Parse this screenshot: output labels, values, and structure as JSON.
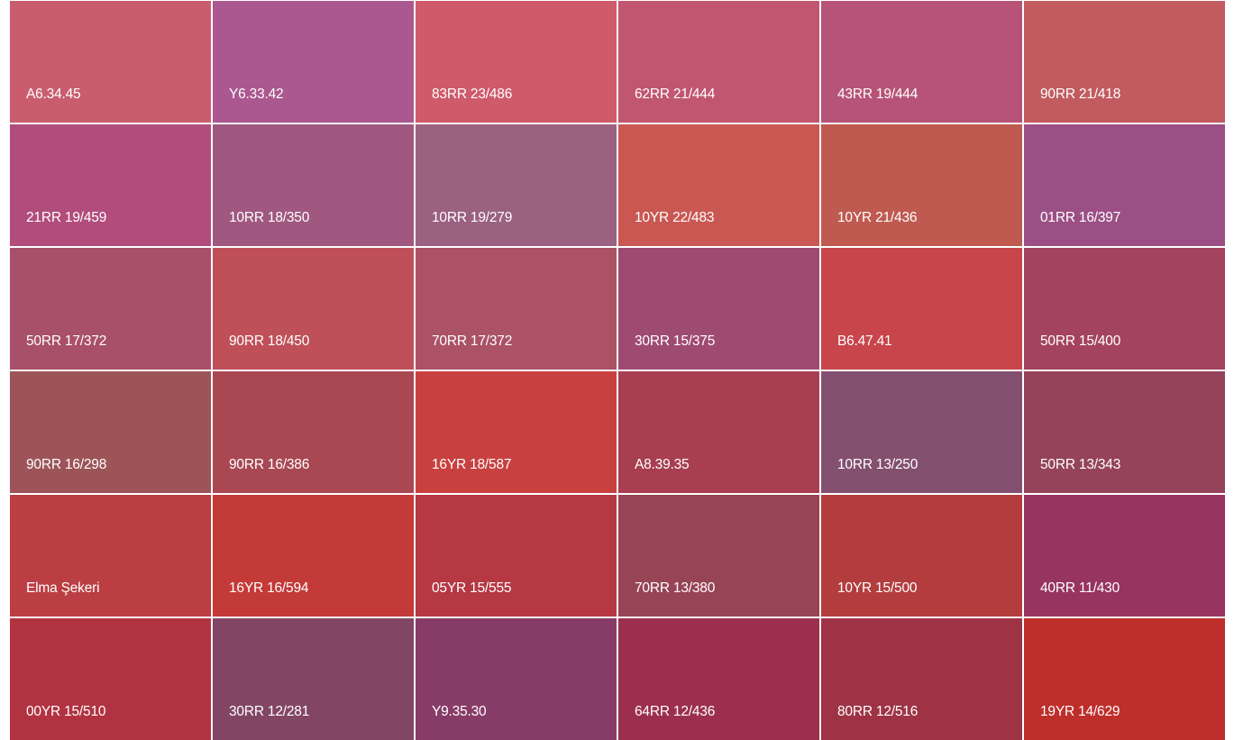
{
  "swatches": [
    {
      "code": "A6.34.45",
      "color": "#c95d6e"
    },
    {
      "code": "Y6.33.42",
      "color": "#ab5790"
    },
    {
      "code": "83RR 23/486",
      "color": "#cf5a6a"
    },
    {
      "code": "62RR 21/444",
      "color": "#c0566f"
    },
    {
      "code": "43RR 19/444",
      "color": "#b65377"
    },
    {
      "code": "90RR 21/418",
      "color": "#c15b60"
    },
    {
      "code": "21RR 19/459",
      "color": "#b14c7c"
    },
    {
      "code": "10RR 18/350",
      "color": "#a05880"
    },
    {
      "code": "10RR 19/279",
      "color": "#9a6181"
    },
    {
      "code": "10YR 22/483",
      "color": "#c95853"
    },
    {
      "code": "10YR 21/436",
      "color": "#bf5a51"
    },
    {
      "code": "01RR 16/397",
      "color": "#9c4f85"
    },
    {
      "code": "50RR 17/372",
      "color": "#a84f69"
    },
    {
      "code": "90RR 18/450",
      "color": "#bf505a"
    },
    {
      "code": "70RR 17/372",
      "color": "#ab5265"
    },
    {
      "code": "30RR 15/375",
      "color": "#9f4a71"
    },
    {
      "code": "B6.47.41",
      "color": "#c8454b"
    },
    {
      "code": "50RR 15/400",
      "color": "#a4435f"
    },
    {
      "code": "90RR 16/298",
      "color": "#9c5458"
    },
    {
      "code": "90RR 16/386",
      "color": "#a94852"
    },
    {
      "code": "16YR 18/587",
      "color": "#c94040"
    },
    {
      "code": "A8.39.35",
      "color": "#a73f51"
    },
    {
      "code": "10RR 13/250",
      "color": "#835070"
    },
    {
      "code": "50RR 13/343",
      "color": "#95435b"
    },
    {
      "code": "Elma Şekeri",
      "color": "#bb3e42"
    },
    {
      "code": "16YR 16/594",
      "color": "#c33a38"
    },
    {
      "code": "05YR 15/555",
      "color": "#b53843"
    },
    {
      "code": "70RR 13/380",
      "color": "#974455"
    },
    {
      "code": "10YR 15/500",
      "color": "#b33d3d"
    },
    {
      "code": "40RR 11/430",
      "color": "#973460"
    },
    {
      "code": "00YR 15/510",
      "color": "#b13341"
    },
    {
      "code": "30RR 12/281",
      "color": "#824664"
    },
    {
      "code": "Y9.35.30",
      "color": "#873c67"
    },
    {
      "code": "64RR 12/436",
      "color": "#9c2f4e"
    },
    {
      "code": "80RR 12/516",
      "color": "#9e3345"
    },
    {
      "code": "19YR 14/629",
      "color": "#be2e2b"
    }
  ]
}
